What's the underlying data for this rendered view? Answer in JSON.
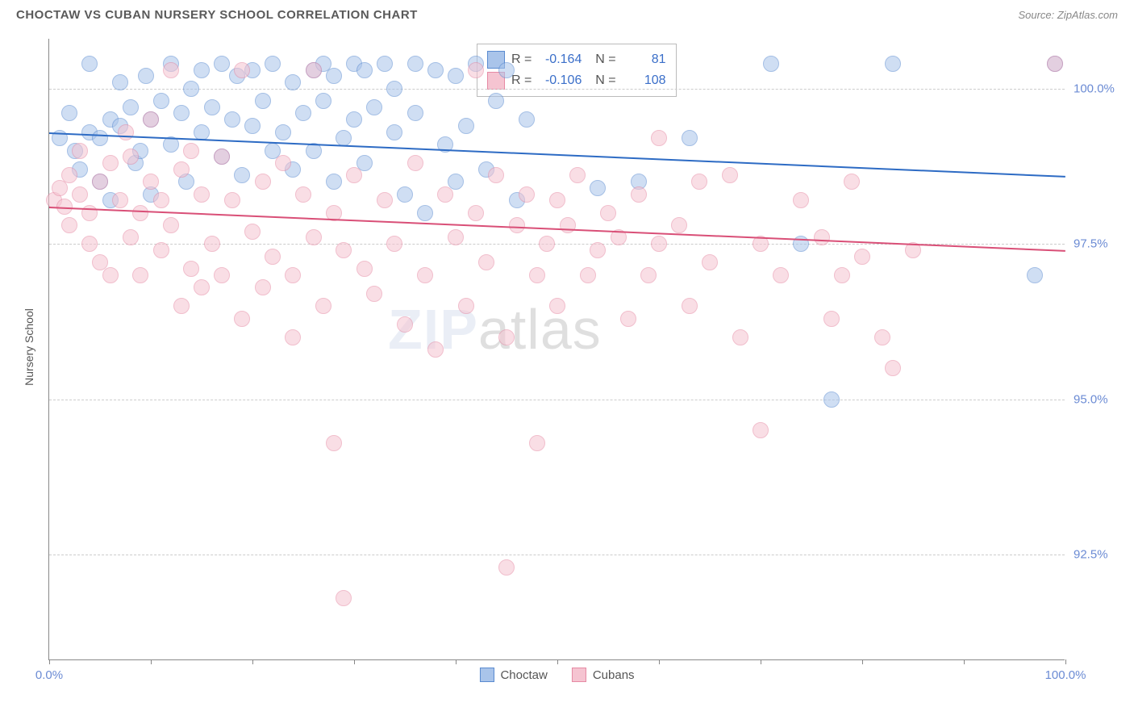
{
  "title": "CHOCTAW VS CUBAN NURSERY SCHOOL CORRELATION CHART",
  "source": "Source: ZipAtlas.com",
  "watermark": {
    "part1": "ZIP",
    "part2": "atlas"
  },
  "y_axis_title": "Nursery School",
  "chart": {
    "type": "scatter",
    "background_color": "#ffffff",
    "grid_color": "#cccccc",
    "axis_color": "#888888",
    "text_color": "#555555",
    "accent_color": "#6b8bd4",
    "xlim": [
      0,
      100
    ],
    "ylim": [
      90.8,
      100.8
    ],
    "x_ticks": [
      0,
      10,
      20,
      30,
      40,
      50,
      60,
      70,
      80,
      90,
      100
    ],
    "x_tick_labels": {
      "0": "0.0%",
      "100": "100.0%"
    },
    "y_ticks": [
      92.5,
      95.0,
      97.5,
      100.0
    ],
    "y_tick_labels": [
      "92.5%",
      "95.0%",
      "97.5%",
      "100.0%"
    ],
    "point_radius": 10,
    "point_opacity": 0.55,
    "trendline_width": 2
  },
  "series": [
    {
      "name": "Choctaw",
      "color_fill": "#a9c4ea",
      "color_stroke": "#5a8bd0",
      "line_color": "#2d6bc4",
      "R": "-0.164",
      "N": "81",
      "trend": {
        "x1": 0,
        "y1": 99.3,
        "x2": 100,
        "y2": 98.6
      },
      "points": [
        [
          1,
          99.2
        ],
        [
          2,
          99.6
        ],
        [
          2.5,
          99.0
        ],
        [
          3,
          98.7
        ],
        [
          4,
          99.3
        ],
        [
          4,
          100.4
        ],
        [
          5,
          99.2
        ],
        [
          5,
          98.5
        ],
        [
          6,
          99.5
        ],
        [
          6,
          98.2
        ],
        [
          7,
          100.1
        ],
        [
          7,
          99.4
        ],
        [
          8,
          99.7
        ],
        [
          8.5,
          98.8
        ],
        [
          9,
          99.0
        ],
        [
          9.5,
          100.2
        ],
        [
          10,
          99.5
        ],
        [
          10,
          98.3
        ],
        [
          11,
          99.8
        ],
        [
          12,
          100.4
        ],
        [
          12,
          99.1
        ],
        [
          13,
          99.6
        ],
        [
          13.5,
          98.5
        ],
        [
          14,
          100.0
        ],
        [
          15,
          99.3
        ],
        [
          15,
          100.3
        ],
        [
          16,
          99.7
        ],
        [
          17,
          98.9
        ],
        [
          17,
          100.4
        ],
        [
          18,
          99.5
        ],
        [
          18.5,
          100.2
        ],
        [
          19,
          98.6
        ],
        [
          20,
          99.4
        ],
        [
          20,
          100.3
        ],
        [
          21,
          99.8
        ],
        [
          22,
          99.0
        ],
        [
          22,
          100.4
        ],
        [
          23,
          99.3
        ],
        [
          24,
          100.1
        ],
        [
          24,
          98.7
        ],
        [
          25,
          99.6
        ],
        [
          26,
          100.3
        ],
        [
          26,
          99.0
        ],
        [
          27,
          100.4
        ],
        [
          27,
          99.8
        ],
        [
          28,
          98.5
        ],
        [
          28,
          100.2
        ],
        [
          29,
          99.2
        ],
        [
          30,
          100.4
        ],
        [
          30,
          99.5
        ],
        [
          31,
          100.3
        ],
        [
          31,
          98.8
        ],
        [
          32,
          99.7
        ],
        [
          33,
          100.4
        ],
        [
          34,
          99.3
        ],
        [
          34,
          100.0
        ],
        [
          35,
          98.3
        ],
        [
          36,
          99.6
        ],
        [
          36,
          100.4
        ],
        [
          37,
          98.0
        ],
        [
          38,
          100.3
        ],
        [
          39,
          99.1
        ],
        [
          40,
          98.5
        ],
        [
          40,
          100.2
        ],
        [
          41,
          99.4
        ],
        [
          42,
          100.4
        ],
        [
          43,
          98.7
        ],
        [
          44,
          99.8
        ],
        [
          45,
          100.3
        ],
        [
          46,
          98.2
        ],
        [
          47,
          99.5
        ],
        [
          54,
          98.4
        ],
        [
          58,
          98.5
        ],
        [
          63,
          99.2
        ],
        [
          71,
          100.4
        ],
        [
          74,
          97.5
        ],
        [
          77,
          95.0
        ],
        [
          83,
          100.4
        ],
        [
          97,
          97.0
        ],
        [
          99,
          100.4
        ]
      ]
    },
    {
      "name": "Cubans",
      "color_fill": "#f5c4d1",
      "color_stroke": "#e68aa4",
      "line_color": "#d94f77",
      "R": "-0.106",
      "N": "108",
      "trend": {
        "x1": 0,
        "y1": 98.1,
        "x2": 100,
        "y2": 97.4
      },
      "points": [
        [
          0.5,
          98.2
        ],
        [
          1,
          98.4
        ],
        [
          1.5,
          98.1
        ],
        [
          2,
          98.6
        ],
        [
          2,
          97.8
        ],
        [
          3,
          98.3
        ],
        [
          3,
          99.0
        ],
        [
          4,
          98.0
        ],
        [
          4,
          97.5
        ],
        [
          5,
          98.5
        ],
        [
          5,
          97.2
        ],
        [
          6,
          98.8
        ],
        [
          6,
          97.0
        ],
        [
          7,
          98.2
        ],
        [
          7.5,
          99.3
        ],
        [
          8,
          97.6
        ],
        [
          8,
          98.9
        ],
        [
          9,
          98.0
        ],
        [
          9,
          97.0
        ],
        [
          10,
          98.5
        ],
        [
          10,
          99.5
        ],
        [
          11,
          97.4
        ],
        [
          11,
          98.2
        ],
        [
          12,
          97.8
        ],
        [
          12,
          100.3
        ],
        [
          13,
          96.5
        ],
        [
          13,
          98.7
        ],
        [
          14,
          97.1
        ],
        [
          14,
          99.0
        ],
        [
          15,
          98.3
        ],
        [
          15,
          96.8
        ],
        [
          16,
          97.5
        ],
        [
          17,
          98.9
        ],
        [
          17,
          97.0
        ],
        [
          18,
          98.2
        ],
        [
          19,
          96.3
        ],
        [
          19,
          100.3
        ],
        [
          20,
          97.7
        ],
        [
          21,
          98.5
        ],
        [
          21,
          96.8
        ],
        [
          22,
          97.3
        ],
        [
          23,
          98.8
        ],
        [
          24,
          97.0
        ],
        [
          24,
          96.0
        ],
        [
          25,
          98.3
        ],
        [
          26,
          97.6
        ],
        [
          26,
          100.3
        ],
        [
          27,
          96.5
        ],
        [
          28,
          98.0
        ],
        [
          28,
          94.3
        ],
        [
          29,
          97.4
        ],
        [
          29,
          91.8
        ],
        [
          30,
          98.6
        ],
        [
          31,
          97.1
        ],
        [
          32,
          96.7
        ],
        [
          33,
          98.2
        ],
        [
          34,
          97.5
        ],
        [
          35,
          96.2
        ],
        [
          36,
          98.8
        ],
        [
          37,
          97.0
        ],
        [
          38,
          95.8
        ],
        [
          39,
          98.3
        ],
        [
          40,
          97.6
        ],
        [
          41,
          96.5
        ],
        [
          42,
          98.0
        ],
        [
          42,
          100.3
        ],
        [
          43,
          97.2
        ],
        [
          44,
          98.6
        ],
        [
          45,
          96.0
        ],
        [
          45,
          92.3
        ],
        [
          46,
          97.8
        ],
        [
          47,
          98.3
        ],
        [
          48,
          97.0
        ],
        [
          48,
          94.3
        ],
        [
          49,
          97.5
        ],
        [
          50,
          98.2
        ],
        [
          50,
          96.5
        ],
        [
          51,
          97.8
        ],
        [
          52,
          98.6
        ],
        [
          53,
          97.0
        ],
        [
          54,
          97.4
        ],
        [
          55,
          98.0
        ],
        [
          56,
          97.6
        ],
        [
          57,
          96.3
        ],
        [
          58,
          98.3
        ],
        [
          59,
          97.0
        ],
        [
          60,
          99.2
        ],
        [
          60,
          97.5
        ],
        [
          62,
          97.8
        ],
        [
          63,
          96.5
        ],
        [
          64,
          98.5
        ],
        [
          65,
          97.2
        ],
        [
          67,
          98.6
        ],
        [
          68,
          96.0
        ],
        [
          70,
          97.5
        ],
        [
          70,
          94.5
        ],
        [
          72,
          97.0
        ],
        [
          74,
          98.2
        ],
        [
          76,
          97.6
        ],
        [
          77,
          96.3
        ],
        [
          78,
          97.0
        ],
        [
          79,
          98.5
        ],
        [
          80,
          97.3
        ],
        [
          82,
          96.0
        ],
        [
          83,
          95.5
        ],
        [
          85,
          97.4
        ],
        [
          99,
          100.4
        ]
      ]
    }
  ],
  "bottom_legend": [
    {
      "label": "Choctaw",
      "fill": "#a9c4ea",
      "stroke": "#5a8bd0"
    },
    {
      "label": "Cubans",
      "fill": "#f5c4d1",
      "stroke": "#e68aa4"
    }
  ]
}
